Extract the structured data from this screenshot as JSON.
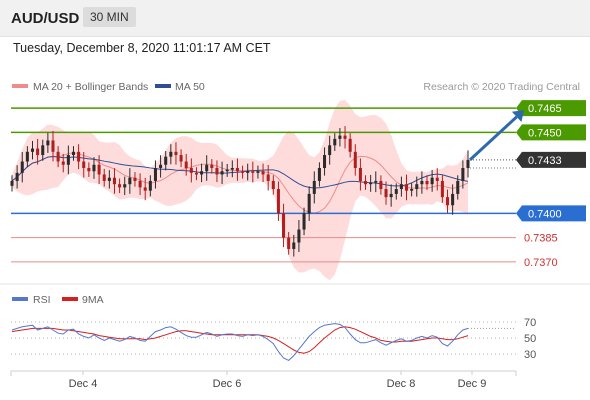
{
  "header": {
    "symbol": "AUD/USD",
    "timeframe": "30 MIN",
    "datetime": "Tuesday, December 8, 2020 11:01:17 AM CET"
  },
  "legend": {
    "ma20": "MA 20 + Bollinger Bands",
    "ma50": "MA 50",
    "source": "Research © 2020 Trading Central",
    "ma20_color": "#f08b8b",
    "ma50_color": "#2d4f93"
  },
  "rsi_legend": {
    "rsi": "RSI",
    "ma9": "9MA",
    "rsi_color": "#5577cc",
    "ma9_color": "#d42020"
  },
  "colors": {
    "resistance": "#4a9a00",
    "support": "#2a6ed2",
    "support_weak": "#e58c8c",
    "current": "#333333",
    "arrow": "#2e69ad",
    "band": "#fdd0d0",
    "candle_up": "#2b2b2b",
    "candle_down": "#b01e1e"
  },
  "chart_data": [
    {
      "type": "candlestick",
      "symbol": "AUD/USD",
      "timeframe": "30 MIN",
      "ylim": [
        0.7365,
        0.747
      ],
      "x_ticks": [
        "Dec 4",
        "Dec 6",
        "Dec 8",
        "Dec 9"
      ],
      "current_price": 0.7433,
      "levels": [
        {
          "label": "0.7465",
          "value": 0.7465,
          "kind": "resistance"
        },
        {
          "label": "0.7450",
          "value": 0.745,
          "kind": "resistance"
        },
        {
          "label": "0.7400",
          "value": 0.74,
          "kind": "support"
        },
        {
          "label": "0.7385",
          "value": 0.7385,
          "kind": "support_weak"
        },
        {
          "label": "0.7370",
          "value": 0.737,
          "kind": "support_weak"
        }
      ],
      "current_label": "0.7433",
      "close_series": [
        0.742,
        0.7425,
        0.7432,
        0.7438,
        0.744,
        0.7436,
        0.7442,
        0.7445,
        0.7438,
        0.7432,
        0.743,
        0.7436,
        0.7438,
        0.7432,
        0.7428,
        0.7426,
        0.743,
        0.7424,
        0.742,
        0.7422,
        0.7418,
        0.7416,
        0.7418,
        0.7422,
        0.742,
        0.7416,
        0.7414,
        0.742,
        0.7428,
        0.743,
        0.7435,
        0.7438,
        0.7436,
        0.7432,
        0.7428,
        0.7425,
        0.7424,
        0.7426,
        0.743,
        0.7428,
        0.7424,
        0.7426,
        0.7427,
        0.7428,
        0.7426,
        0.7425,
        0.7426,
        0.7425,
        0.7426,
        0.7424,
        0.742,
        0.7415,
        0.74,
        0.7385,
        0.7378,
        0.7382,
        0.739,
        0.74,
        0.7412,
        0.742,
        0.7428,
        0.7436,
        0.7442,
        0.7446,
        0.7448,
        0.7446,
        0.7438,
        0.7428,
        0.742,
        0.7418,
        0.7419,
        0.742,
        0.7415,
        0.741,
        0.7412,
        0.7415,
        0.7418,
        0.7414,
        0.7415,
        0.7418,
        0.742,
        0.7418,
        0.7422,
        0.742,
        0.741,
        0.7405,
        0.7412,
        0.742,
        0.7428,
        0.7433
      ]
    },
    {
      "type": "line",
      "name": "RSI",
      "ylim": [
        20,
        80
      ],
      "y_ticks": [
        70,
        50,
        30
      ],
      "y_tick_labels": [
        "70",
        "50",
        "30"
      ],
      "rsi": [
        60,
        62,
        64,
        65,
        66,
        60,
        62,
        64,
        60,
        56,
        55,
        60,
        61,
        55,
        52,
        50,
        54,
        50,
        47,
        50,
        48,
        46,
        48,
        52,
        50,
        47,
        46,
        52,
        58,
        60,
        63,
        64,
        61,
        57,
        53,
        51,
        51,
        54,
        57,
        55,
        52,
        54,
        55,
        55,
        53,
        52,
        54,
        53,
        54,
        52,
        48,
        43,
        33,
        25,
        22,
        28,
        36,
        44,
        52,
        58,
        63,
        66,
        67,
        68,
        67,
        63,
        55,
        48,
        44,
        44,
        46,
        48,
        44,
        41,
        44,
        47,
        49,
        46,
        47,
        50,
        52,
        50,
        53,
        51,
        43,
        40,
        46,
        54,
        60,
        62
      ],
      "ma9": [
        58,
        59,
        60,
        61,
        62,
        62,
        62,
        62,
        62,
        61,
        60,
        60,
        59,
        58,
        57,
        56,
        55,
        53,
        52,
        51,
        50,
        49,
        49,
        49,
        49,
        49,
        48,
        49,
        50,
        52,
        54,
        56,
        58,
        59,
        59,
        58,
        57,
        56,
        55,
        54,
        54,
        54,
        54,
        54,
        54,
        54,
        54,
        54,
        54,
        53,
        52,
        50,
        47,
        43,
        39,
        35,
        32,
        31,
        33,
        38,
        44,
        50,
        55,
        60,
        63,
        64,
        63,
        61,
        58,
        55,
        52,
        50,
        47,
        46,
        45,
        45,
        46,
        46,
        46,
        47,
        48,
        49,
        50,
        50,
        49,
        48,
        48,
        49,
        51,
        53
      ]
    }
  ]
}
